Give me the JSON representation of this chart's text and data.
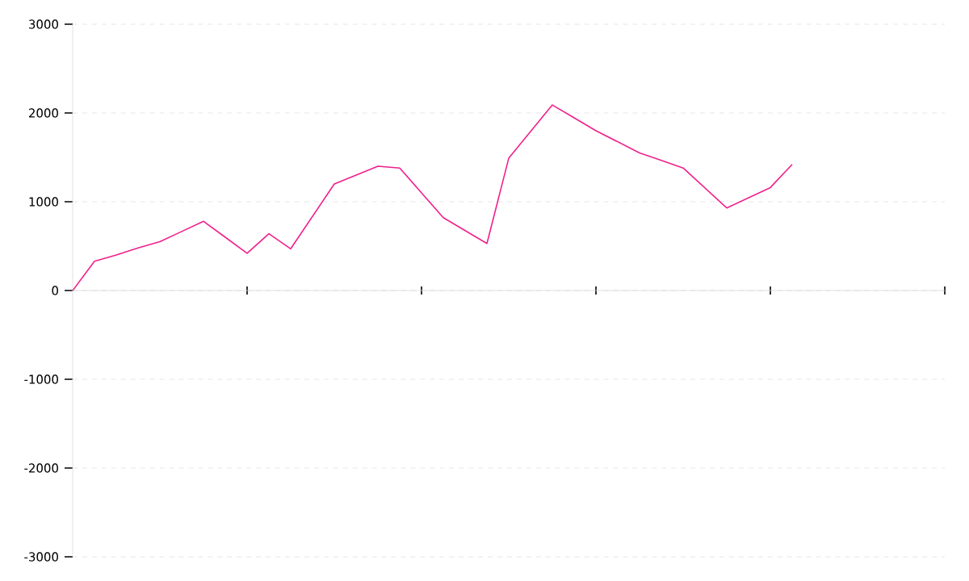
{
  "chart_data": {
    "type": "line",
    "categories": [
      null,
      null,
      null,
      null,
      null,
      null,
      null,
      null,
      null,
      null,
      null,
      null,
      null,
      null,
      null,
      null,
      null,
      null,
      null,
      null,
      null,
      null,
      null,
      null,
      null,
      null,
      null,
      null,
      null,
      null,
      null,
      null,
      null,
      null,
      null,
      null,
      null,
      null,
      null,
      null,
      null
    ],
    "values": [
      0,
      330,
      400,
      480,
      550,
      665,
      780,
      600,
      420,
      640,
      470,
      835,
      1200,
      1300,
      1400,
      1380,
      1100,
      820,
      675,
      530,
      1490,
      1790,
      2090,
      1945,
      1800,
      1675,
      1550,
      1465,
      1380,
      1155,
      930,
      1045,
      1160,
      1420,
      null,
      null,
      null,
      null,
      null,
      null,
      null
    ],
    "color": "#f0208c",
    "ylim": [
      -3000,
      3000
    ],
    "yticks": [
      -3000,
      -2000,
      -1000,
      0,
      1000,
      2000,
      3000
    ],
    "grid": "y",
    "marker": "none",
    "tick_labels": "y"
  }
}
